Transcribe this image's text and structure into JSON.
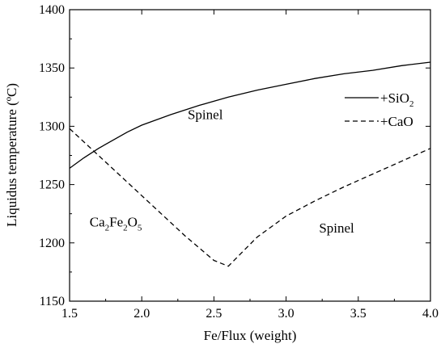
{
  "chart_data": {
    "type": "line",
    "xlabel": "Fe/Flux (weight)",
    "ylabel": "Liquidus temperature (ºC)",
    "xlim": [
      1.5,
      4.0
    ],
    "ylim": [
      1150,
      1400
    ],
    "xticks": [
      1.5,
      2.0,
      2.5,
      3.0,
      3.5,
      4.0
    ],
    "xtick_labels": [
      "1.5",
      "2.0",
      "2.5",
      "3.0",
      "3.5",
      "4.0"
    ],
    "yticks": [
      1150,
      1200,
      1250,
      1300,
      1350,
      1400
    ],
    "ytick_labels": [
      "1150",
      "1200",
      "1250",
      "1300",
      "1350",
      "1400"
    ],
    "grid": false,
    "legend_position": "top-right",
    "series": [
      {
        "name": "+SiO2",
        "name_main": "+SiO",
        "name_sub": "2",
        "style": "solid",
        "x": [
          1.5,
          1.6,
          1.7,
          1.8,
          1.9,
          2.0,
          2.2,
          2.4,
          2.6,
          2.8,
          3.0,
          3.2,
          3.4,
          3.6,
          3.8,
          4.0
        ],
        "y": [
          1264,
          1273,
          1281,
          1288,
          1295,
          1301,
          1310,
          1318,
          1325,
          1331,
          1336,
          1341,
          1345,
          1348,
          1352,
          1355
        ]
      },
      {
        "name": "+CaO",
        "style": "dashed",
        "x": [
          1.5,
          1.7,
          1.9,
          2.1,
          2.3,
          2.5,
          2.6,
          2.8,
          3.0,
          3.2,
          3.4,
          3.6,
          3.8,
          4.0
        ],
        "y": [
          1298,
          1275,
          1252,
          1229,
          1206,
          1185,
          1180,
          1205,
          1223,
          1236,
          1248,
          1259,
          1270,
          1281
        ]
      }
    ],
    "annotations": [
      {
        "id": "spinel-upper",
        "text": "Spinel",
        "x": 2.44,
        "y": 1306
      },
      {
        "id": "spinel-lower",
        "text": "Spinel",
        "x": 3.35,
        "y": 1209
      },
      {
        "id": "ca2fe2o5",
        "parts": [
          "Ca",
          "2",
          "Fe",
          "2",
          "O",
          "5"
        ],
        "x": 1.82,
        "y": 1214
      }
    ]
  }
}
